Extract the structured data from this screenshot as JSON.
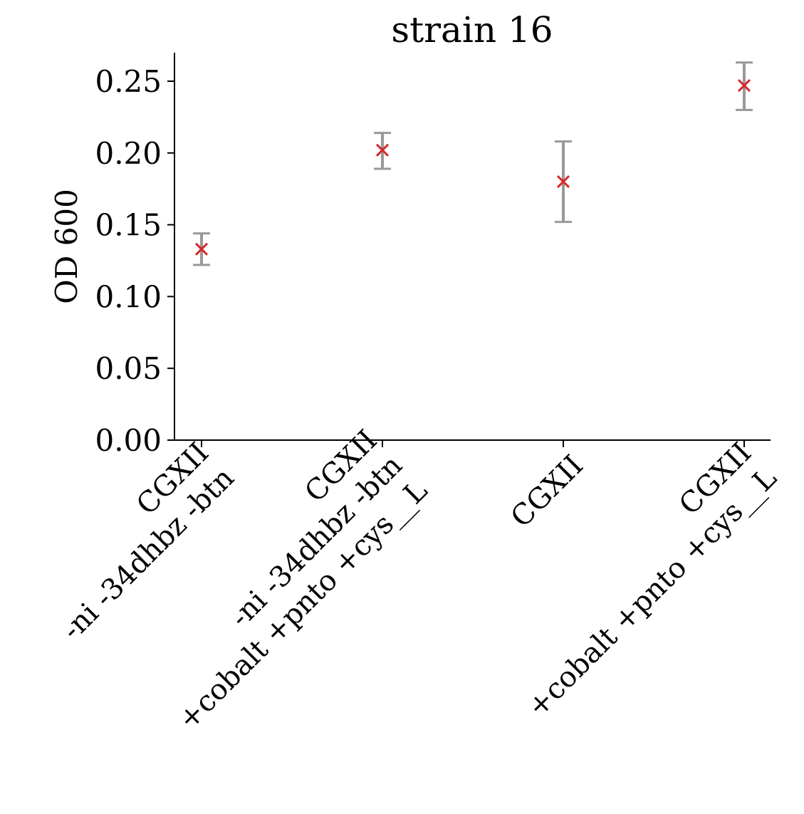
{
  "chart_data": {
    "type": "scatter",
    "title": "strain 16",
    "xlabel": "",
    "ylabel": "OD 600",
    "ylim": [
      0,
      0.27
    ],
    "yticks": [
      "0.00",
      "0.05",
      "0.10",
      "0.15",
      "0.20",
      "0.25"
    ],
    "grid": false,
    "legend": "none",
    "categories": [
      [
        "CGXII",
        "-ni -34dhbz -btn"
      ],
      [
        "CGXII",
        "-ni -34dhbz -btn",
        "+cobalt +pnto +cys__L"
      ],
      [
        "CGXII"
      ],
      [
        "CGXII",
        "+cobalt +pnto +cys__L"
      ]
    ],
    "values": [
      0.133,
      0.202,
      0.18,
      0.247
    ],
    "errors": [
      [
        0.122,
        0.144
      ],
      [
        0.189,
        0.214
      ],
      [
        0.152,
        0.208
      ],
      [
        0.23,
        0.263
      ]
    ],
    "colors": {
      "marker": "#d62728",
      "errorbar": "#999999",
      "axis": "#000000"
    }
  }
}
